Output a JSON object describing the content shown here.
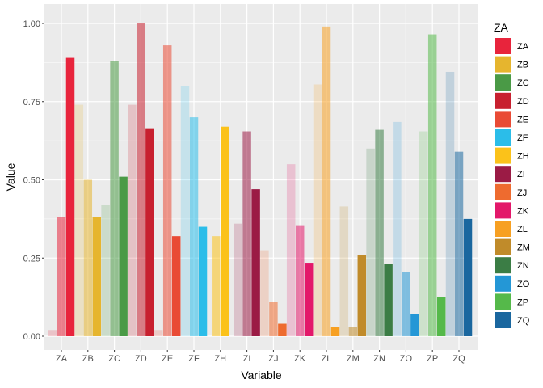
{
  "chart_data": {
    "type": "bar",
    "xlabel": "Variable",
    "ylabel": "Value",
    "ylim": [
      0,
      1
    ],
    "yticks": [
      "0.00",
      "0.25",
      "0.50",
      "0.75",
      "1.00"
    ],
    "categories": [
      "ZA",
      "ZB",
      "ZC",
      "ZD",
      "ZE",
      "ZF",
      "ZH",
      "ZI",
      "ZJ",
      "ZK",
      "ZL",
      "ZM",
      "ZN",
      "ZO",
      "ZP",
      "ZQ"
    ],
    "colors": {
      "ZA": "#e8243c",
      "ZB": "#e6b52e",
      "ZC": "#4a9a46",
      "ZD": "#c8202f",
      "ZE": "#e94b35",
      "ZF": "#2bbde9",
      "ZH": "#fbc21a",
      "ZI": "#9b1b45",
      "ZJ": "#ee6b2f",
      "ZK": "#e3186a",
      "ZL": "#f7a022",
      "ZM": "#c08b2a",
      "ZN": "#3b7d45",
      "ZO": "#2497d6",
      "ZP": "#55b94a",
      "ZQ": "#1a679f"
    },
    "bar_groups": [
      {
        "category": "ZA",
        "bars": [
          {
            "value": 0.02,
            "alpha": 0.2
          },
          {
            "value": 0.38,
            "alpha": 0.55
          },
          {
            "value": 0.89,
            "alpha": 1.0
          }
        ]
      },
      {
        "category": "ZB",
        "bars": [
          {
            "value": 0.74,
            "alpha": 0.2
          },
          {
            "value": 0.5,
            "alpha": 0.55
          },
          {
            "value": 0.38,
            "alpha": 1.0
          }
        ]
      },
      {
        "category": "ZC",
        "bars": [
          {
            "value": 0.42,
            "alpha": 0.2
          },
          {
            "value": 0.88,
            "alpha": 0.55
          },
          {
            "value": 0.51,
            "alpha": 1.0
          }
        ]
      },
      {
        "category": "ZD",
        "bars": [
          {
            "value": 0.74,
            "alpha": 0.2
          },
          {
            "value": 1.0,
            "alpha": 0.55
          },
          {
            "value": 0.665,
            "alpha": 1.0
          }
        ]
      },
      {
        "category": "ZE",
        "bars": [
          {
            "value": 0.02,
            "alpha": 0.2
          },
          {
            "value": 0.93,
            "alpha": 0.55
          },
          {
            "value": 0.32,
            "alpha": 1.0
          }
        ]
      },
      {
        "category": "ZF",
        "bars": [
          {
            "value": 0.8,
            "alpha": 0.2
          },
          {
            "value": 0.7,
            "alpha": 0.55
          },
          {
            "value": 0.35,
            "alpha": 1.0
          }
        ]
      },
      {
        "category": "ZH",
        "bars": [
          {
            "value": 0.32,
            "alpha": 0.55
          },
          {
            "value": 0.67,
            "alpha": 1.0
          }
        ]
      },
      {
        "category": "ZI",
        "bars": [
          {
            "value": 0.36,
            "alpha": 0.2
          },
          {
            "value": 0.655,
            "alpha": 0.55
          },
          {
            "value": 0.47,
            "alpha": 1.0
          }
        ]
      },
      {
        "category": "ZJ",
        "bars": [
          {
            "value": 0.275,
            "alpha": 0.2
          },
          {
            "value": 0.11,
            "alpha": 0.55
          },
          {
            "value": 0.04,
            "alpha": 1.0
          }
        ]
      },
      {
        "category": "ZK",
        "bars": [
          {
            "value": 0.55,
            "alpha": 0.2
          },
          {
            "value": 0.355,
            "alpha": 0.55
          },
          {
            "value": 0.235,
            "alpha": 1.0
          }
        ]
      },
      {
        "category": "ZL",
        "bars": [
          {
            "value": 0.805,
            "alpha": 0.2
          },
          {
            "value": 0.99,
            "alpha": 0.55
          },
          {
            "value": 0.03,
            "alpha": 1.0
          }
        ]
      },
      {
        "category": "ZM",
        "bars": [
          {
            "value": 0.415,
            "alpha": 0.2
          },
          {
            "value": 0.03,
            "alpha": 0.55
          },
          {
            "value": 0.26,
            "alpha": 1.0
          }
        ]
      },
      {
        "category": "ZN",
        "bars": [
          {
            "value": 0.6,
            "alpha": 0.2
          },
          {
            "value": 0.66,
            "alpha": 0.55
          },
          {
            "value": 0.23,
            "alpha": 1.0
          }
        ]
      },
      {
        "category": "ZO",
        "bars": [
          {
            "value": 0.685,
            "alpha": 0.2
          },
          {
            "value": 0.205,
            "alpha": 0.55
          },
          {
            "value": 0.07,
            "alpha": 1.0
          }
        ]
      },
      {
        "category": "ZP",
        "bars": [
          {
            "value": 0.655,
            "alpha": 0.2
          },
          {
            "value": 0.965,
            "alpha": 0.55
          },
          {
            "value": 0.125,
            "alpha": 1.0
          }
        ]
      },
      {
        "category": "ZQ",
        "bars": [
          {
            "value": 0.845,
            "alpha": 0.2
          },
          {
            "value": 0.59,
            "alpha": 0.55
          },
          {
            "value": 0.375,
            "alpha": 1.0
          }
        ]
      }
    ],
    "legend": {
      "title": "ZA",
      "position": "right",
      "entries": [
        "ZA",
        "ZB",
        "ZC",
        "ZD",
        "ZE",
        "ZF",
        "ZH",
        "ZI",
        "ZJ",
        "ZK",
        "ZL",
        "ZM",
        "ZN",
        "ZO",
        "ZP",
        "ZQ"
      ]
    },
    "grid": true,
    "panel_background": "#ebebeb"
  }
}
